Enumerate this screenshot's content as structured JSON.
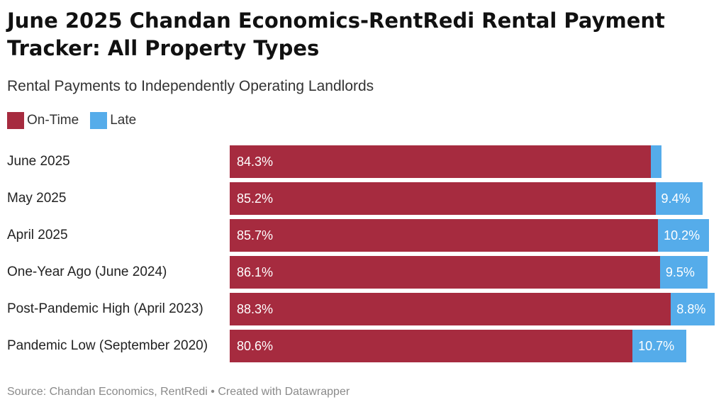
{
  "title": "June 2025 Chandan Economics-RentRedi Rental Payment Tracker: All Property Types",
  "subtitle": "Rental Payments to Independently Operating Landlords",
  "source": "Source: Chandan Economics, RentRedi • Created with Datawrapper",
  "colors": {
    "on_time": "#a62b3f",
    "late": "#55acea"
  },
  "chart_data": {
    "type": "bar",
    "orientation": "horizontal",
    "stacked": true,
    "categories": [
      "June 2025",
      "May 2025",
      "April 2025",
      "One-Year Ago (June 2024)",
      "Post-Pandemic High (April 2023)",
      "Pandemic Low (September 2020)"
    ],
    "series": [
      {
        "name": "On-Time",
        "values": [
          84.3,
          85.2,
          85.7,
          86.1,
          88.3,
          80.6
        ],
        "labels": [
          "84.3%",
          "85.2%",
          "85.7%",
          "86.1%",
          "88.3%",
          "80.6%"
        ]
      },
      {
        "name": "Late",
        "values": [
          2.1,
          9.4,
          10.2,
          9.5,
          8.8,
          10.7
        ],
        "labels": [
          "",
          "9.4%",
          "10.2%",
          "9.5%",
          "8.8%",
          "10.7%"
        ]
      }
    ],
    "legend_position": "top-left",
    "xlim": [
      0,
      100
    ]
  }
}
